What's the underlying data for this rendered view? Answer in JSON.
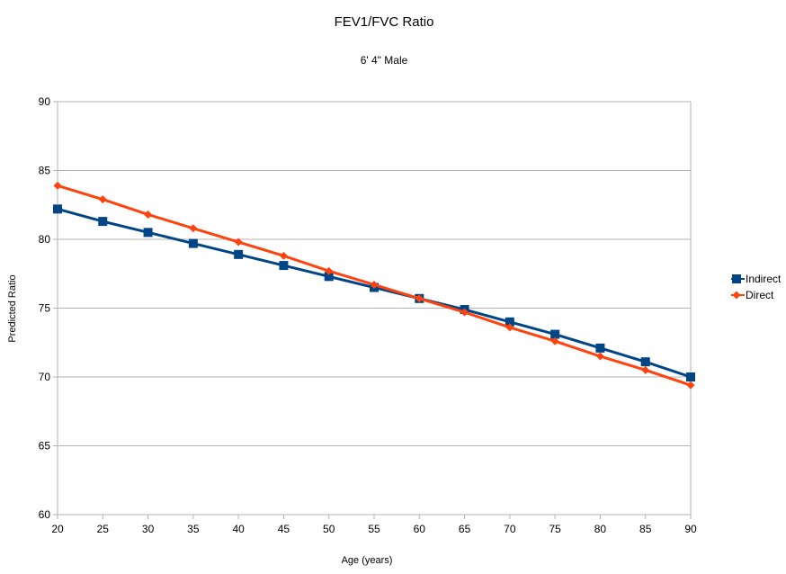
{
  "chart_data": {
    "type": "line",
    "title": "FEV1/FVC Ratio",
    "subtitle": "6' 4\" Male",
    "xlabel": "Age (years)",
    "ylabel": "Predicted Ratio",
    "x": [
      20,
      25,
      30,
      35,
      40,
      45,
      50,
      55,
      60,
      65,
      70,
      75,
      80,
      85,
      90
    ],
    "xlim": [
      20,
      90
    ],
    "ylim": [
      60,
      90
    ],
    "yticks": [
      60,
      65,
      70,
      75,
      80,
      85,
      90
    ],
    "xticks": [
      20,
      25,
      30,
      35,
      40,
      45,
      50,
      55,
      60,
      65,
      70,
      75,
      80,
      85,
      90
    ],
    "grid": "horizontal",
    "legend_position": "right",
    "series": [
      {
        "name": "Indirect",
        "color": "#004586",
        "marker": "square",
        "values": [
          82.2,
          81.3,
          80.5,
          79.7,
          78.9,
          78.1,
          77.3,
          76.5,
          75.7,
          74.9,
          74.0,
          73.1,
          72.1,
          71.1,
          70.0
        ]
      },
      {
        "name": "Direct",
        "color": "#ff420e",
        "marker": "diamond",
        "values": [
          83.9,
          82.9,
          81.8,
          80.8,
          79.8,
          78.8,
          77.7,
          76.7,
          75.7,
          74.7,
          73.6,
          72.6,
          71.5,
          70.5,
          69.4
        ]
      }
    ]
  }
}
